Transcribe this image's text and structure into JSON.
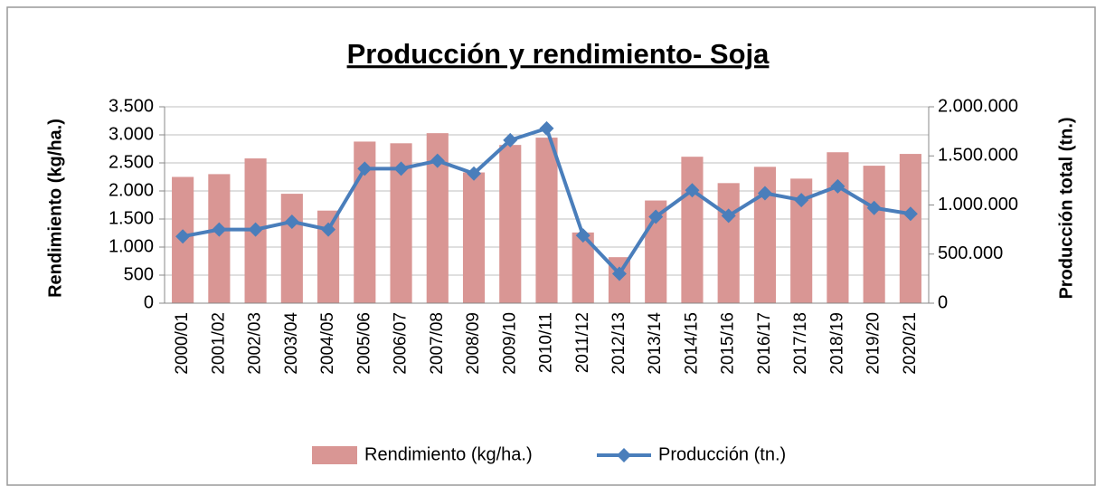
{
  "chart_data": {
    "type": "bar",
    "title": "Producción y rendimiento- Soja",
    "y_label": "Rendimiento (kg/ha.)",
    "y2_label": "Producción total (tn.)",
    "categories": [
      "2000/01",
      "2001/02",
      "2002/03",
      "2003/04",
      "2004/05",
      "2005/06",
      "2006/07",
      "2007/08",
      "2008/09",
      "2009/10",
      "2010/11",
      "2011/12",
      "2012/13",
      "2013/14",
      "2014/15",
      "2015/16",
      "2016/17",
      "2017/18",
      "2018/19",
      "2019/20",
      "2020/21"
    ],
    "series": [
      {
        "name": "Rendimiento (kg/ha.)",
        "type": "bar",
        "color": "#d99694",
        "values": [
          2250,
          2300,
          2580,
          1950,
          1650,
          2880,
          2850,
          3030,
          2330,
          2820,
          2950,
          1260,
          820,
          1830,
          2610,
          2140,
          2430,
          2220,
          2690,
          2450,
          2660
        ]
      },
      {
        "name": "Producción (tn.)",
        "type": "line",
        "axis": "y2",
        "color": "#4a7ebb",
        "values": [
          680000,
          750000,
          750000,
          830000,
          750000,
          1370000,
          1370000,
          1450000,
          1320000,
          1660000,
          1780000,
          690000,
          300000,
          880000,
          1150000,
          890000,
          1120000,
          1050000,
          1190000,
          970000,
          910000
        ]
      }
    ],
    "ylim": [
      0,
      3500
    ],
    "yticks": [
      0,
      500,
      {
        "value": 1000,
        "label": "1.000"
      },
      {
        "value": 1500,
        "label": "1.500"
      },
      {
        "value": 2000,
        "label": "2.000"
      },
      {
        "value": 2500,
        "label": "2.500"
      },
      {
        "value": 3000,
        "label": "3.000"
      },
      {
        "value": 3500,
        "label": "3.500"
      }
    ],
    "y2lim": [
      0,
      2000000
    ],
    "y2ticks": [
      0,
      {
        "value": 500000,
        "label": "500.000"
      },
      {
        "value": 1000000,
        "label": "1.000.000"
      },
      {
        "value": 1500000,
        "label": "1.500.000"
      },
      {
        "value": 2000000,
        "label": "2.000.000"
      }
    ],
    "grid": true,
    "legend": "bottom"
  }
}
